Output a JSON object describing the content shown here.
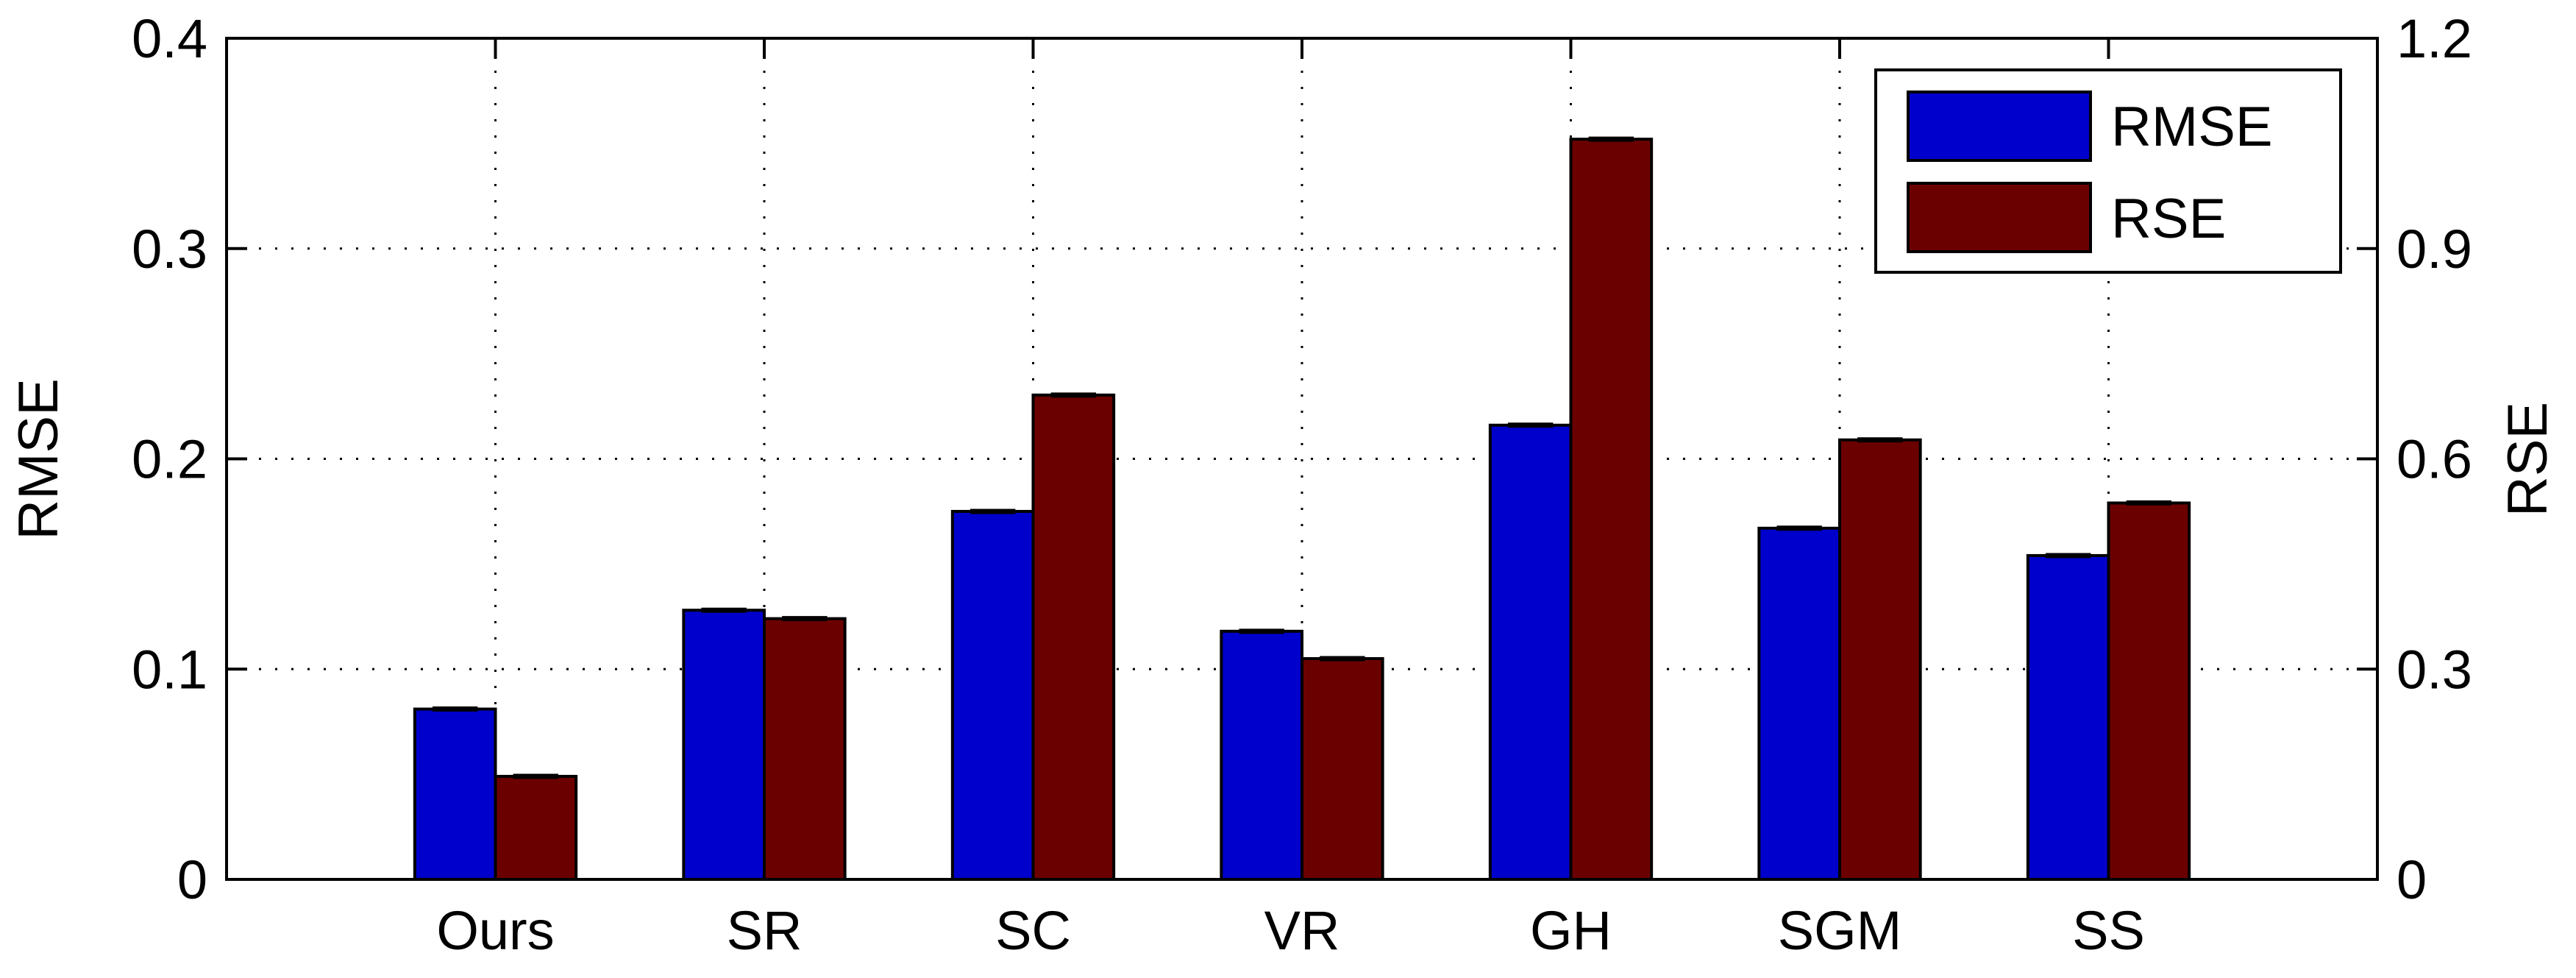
{
  "chart_data": {
    "type": "bar",
    "categories": [
      "Ours",
      "SR",
      "SC",
      "VR",
      "GH",
      "SGM",
      "SS"
    ],
    "y_left": {
      "label": "RMSE",
      "ylim": [
        0,
        0.4
      ],
      "ticks": [
        0,
        0.1,
        0.2,
        0.3,
        0.4
      ],
      "tick_labels": [
        "0",
        "0.1",
        "0.2",
        "0.3",
        "0.4"
      ]
    },
    "y_right": {
      "label": "RSE",
      "ylim": [
        0,
        1.2
      ],
      "ticks": [
        0,
        0.3,
        0.6,
        0.9,
        1.2
      ],
      "tick_labels": [
        "0",
        "0.3",
        "0.6",
        "0.9",
        "1.2"
      ]
    },
    "xlim": [
      0,
      8
    ],
    "series": [
      {
        "name": "RMSE",
        "axis": "left",
        "color": "#0000cc",
        "values": [
          0.081,
          0.128,
          0.175,
          0.118,
          0.216,
          0.167,
          0.154
        ]
      },
      {
        "name": "RSE",
        "axis": "right",
        "color": "#6b0000",
        "values": [
          0.147,
          0.372,
          0.691,
          0.315,
          1.056,
          0.627,
          0.537
        ]
      }
    ],
    "error_bars": true,
    "grid": true,
    "grid_style": "dotted",
    "legend_position": "top-right"
  }
}
